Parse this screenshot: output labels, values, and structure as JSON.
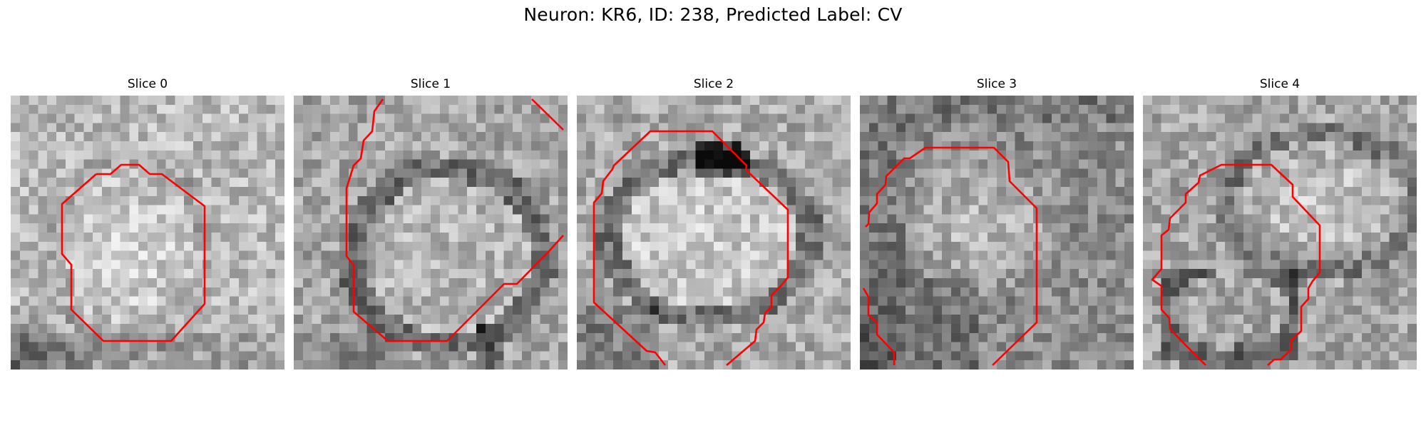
{
  "figure": {
    "title": "Neuron: KR6, ID: 238, Predicted Label: CV"
  },
  "slices": [
    {
      "title": "Slice 0"
    },
    {
      "title": "Slice 1"
    },
    {
      "title": "Slice 2"
    },
    {
      "title": "Slice 3"
    },
    {
      "title": "Slice 4"
    }
  ],
  "style": {
    "contour_color": "#ff0000",
    "colormap": "grayscale"
  }
}
